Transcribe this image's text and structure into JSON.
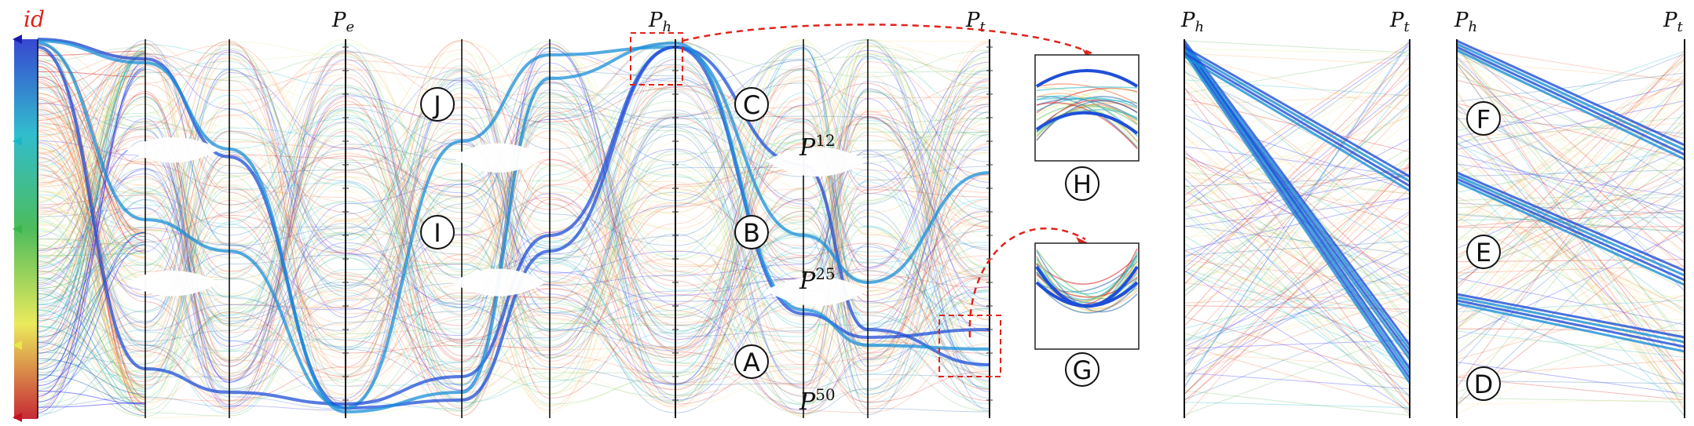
{
  "id_label": "id",
  "axes": {
    "pe": {
      "main": "P",
      "sub": "e"
    },
    "ph": {
      "main": "P",
      "sub": "h"
    },
    "pt": {
      "main": "P",
      "sub": "t"
    }
  },
  "callouts": [
    "A",
    "B",
    "C",
    "D",
    "E",
    "F",
    "G",
    "H",
    "I",
    "J"
  ],
  "p_levels": [
    {
      "base": "P",
      "sup": "12"
    },
    {
      "base": "P",
      "sup": "25"
    },
    {
      "base": "P",
      "sup": "50"
    }
  ],
  "colors": {
    "rainbow": [
      "#d7191c",
      "#f46d43",
      "#fdae61",
      "#fee08b",
      "#d9ef8b",
      "#66bd63",
      "#1ab6c8",
      "#2166ac",
      "#1a1aff"
    ],
    "highlight": "#1f4fd8",
    "callout_arrow": "#e0241b",
    "axis": "#111111"
  }
}
